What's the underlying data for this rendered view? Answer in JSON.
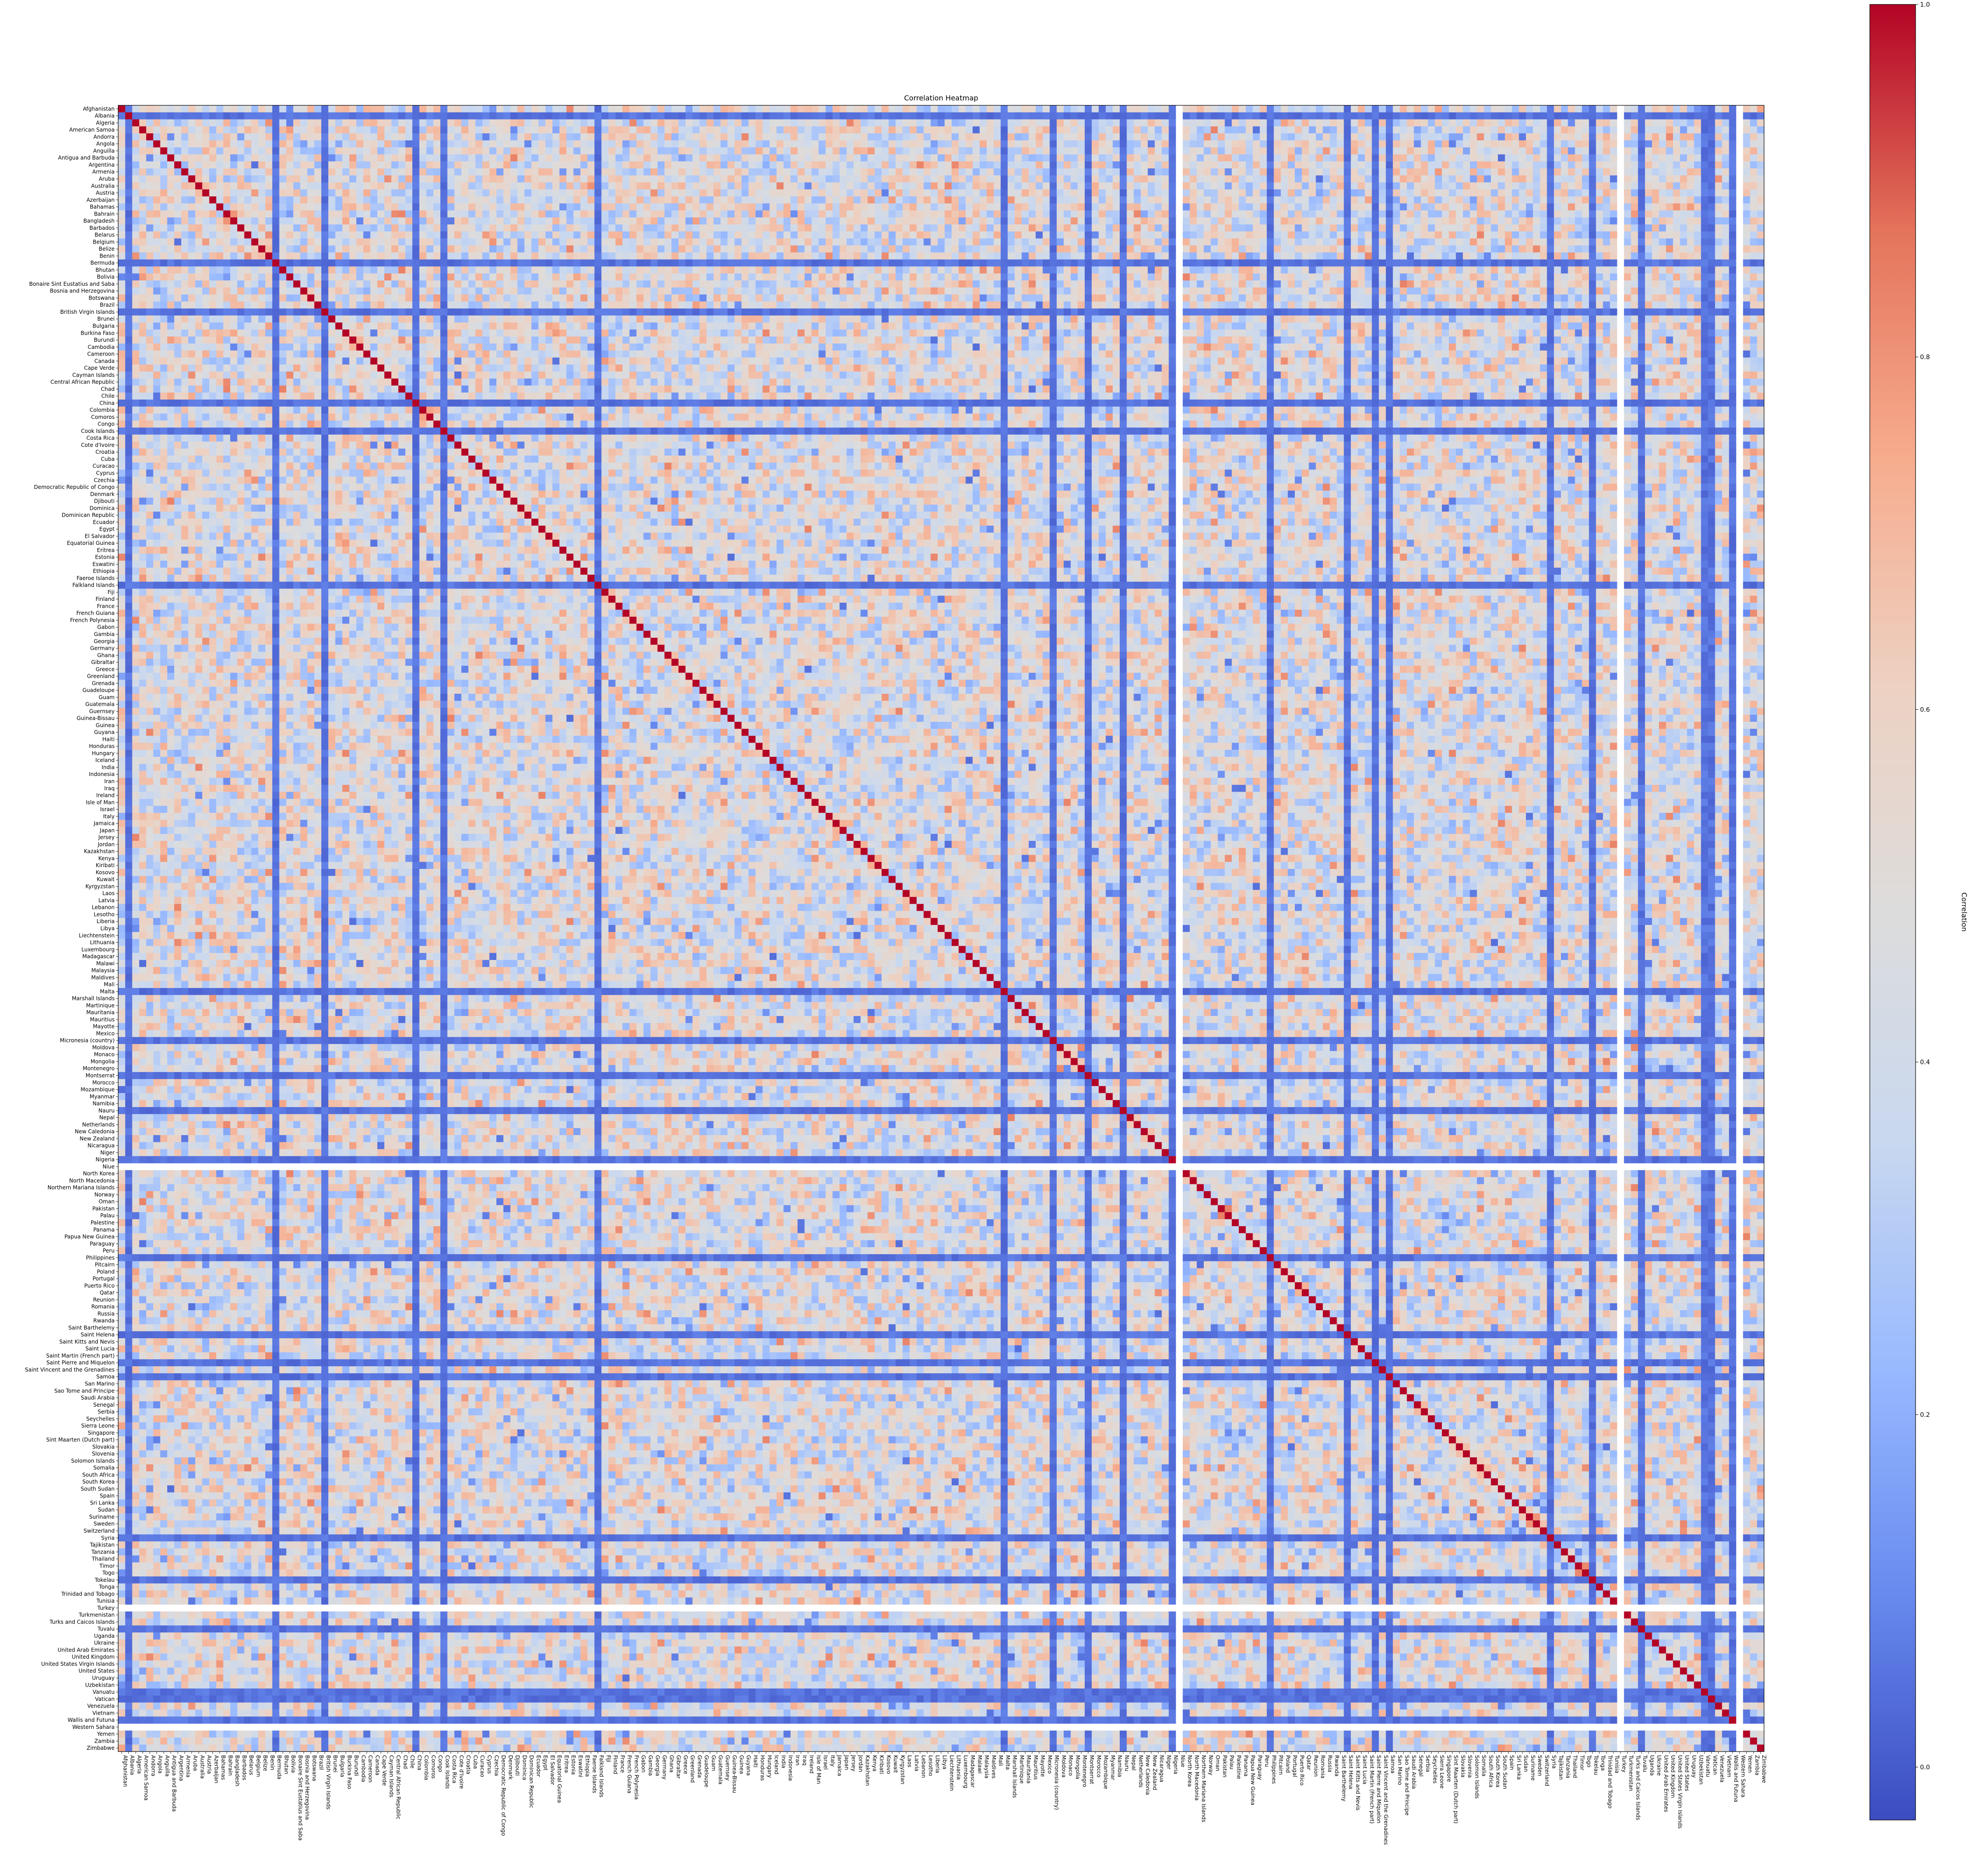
{
  "chart_data": {
    "type": "heatmap",
    "title": "Correlation Heatmap",
    "colorbar": {
      "label": "Correlation",
      "min": -0.03,
      "max": 1.0,
      "ticks": [
        0.0,
        0.2,
        0.4,
        0.6,
        0.8,
        1.0
      ],
      "colormap": "coolwarm",
      "stops": [
        "#3b4cc0",
        "#688aef",
        "#99baff",
        "#c9d8ef",
        "#dddcdc",
        "#edd1c2",
        "#f7ac8e",
        "#e4745b",
        "#b40426"
      ]
    },
    "labels": [
      "Afghanistan",
      "Albania",
      "Algeria",
      "American Samoa",
      "Andorra",
      "Angola",
      "Anguilla",
      "Antigua and Barbuda",
      "Argentina",
      "Armenia",
      "Aruba",
      "Australia",
      "Austria",
      "Azerbaijan",
      "Bahamas",
      "Bahrain",
      "Bangladesh",
      "Barbados",
      "Belarus",
      "Belgium",
      "Belize",
      "Benin",
      "Bermuda",
      "Bhutan",
      "Bolivia",
      "Bonaire Sint Eustatius and Saba",
      "Bosnia and Herzegovina",
      "Botswana",
      "Brazil",
      "British Virgin Islands",
      "Brunei",
      "Bulgaria",
      "Burkina Faso",
      "Burundi",
      "Cambodia",
      "Cameroon",
      "Canada",
      "Cape Verde",
      "Cayman Islands",
      "Central African Republic",
      "Chad",
      "Chile",
      "China",
      "Colombia",
      "Comoros",
      "Congo",
      "Cook Islands",
      "Costa Rica",
      "Cote d'Ivoire",
      "Croatia",
      "Cuba",
      "Curacao",
      "Cyprus",
      "Czechia",
      "Democratic Republic of Congo",
      "Denmark",
      "Djibouti",
      "Dominica",
      "Dominican Republic",
      "Ecuador",
      "Egypt",
      "El Salvador",
      "Equatorial Guinea",
      "Eritrea",
      "Estonia",
      "Eswatini",
      "Ethiopia",
      "Faeroe Islands",
      "Falkland Islands",
      "Fiji",
      "Finland",
      "France",
      "French Guiana",
      "French Polynesia",
      "Gabon",
      "Gambia",
      "Georgia",
      "Germany",
      "Ghana",
      "Gibraltar",
      "Greece",
      "Greenland",
      "Grenada",
      "Guadeloupe",
      "Guam",
      "Guatemala",
      "Guernsey",
      "Guinea-Bissau",
      "Guinea",
      "Guyana",
      "Haiti",
      "Honduras",
      "Hungary",
      "Iceland",
      "India",
      "Indonesia",
      "Iran",
      "Iraq",
      "Ireland",
      "Isle of Man",
      "Israel",
      "Italy",
      "Jamaica",
      "Japan",
      "Jersey",
      "Jordan",
      "Kazakhstan",
      "Kenya",
      "Kiribati",
      "Kosovo",
      "Kuwait",
      "Kyrgyzstan",
      "Laos",
      "Latvia",
      "Lebanon",
      "Lesotho",
      "Liberia",
      "Libya",
      "Liechtenstein",
      "Lithuania",
      "Luxembourg",
      "Madagascar",
      "Malawi",
      "Malaysia",
      "Maldives",
      "Mali",
      "Malta",
      "Marshall Islands",
      "Martinique",
      "Mauritania",
      "Mauritius",
      "Mayotte",
      "Mexico",
      "Micronesia (country)",
      "Moldova",
      "Monaco",
      "Mongolia",
      "Montenegro",
      "Montserrat",
      "Morocco",
      "Mozambique",
      "Myanmar",
      "Namibia",
      "Nauru",
      "Nepal",
      "Netherlands",
      "New Caledonia",
      "New Zealand",
      "Nicaragua",
      "Niger",
      "Nigeria",
      "Niue",
      "North Korea",
      "North Macedonia",
      "Northern Mariana Islands",
      "Norway",
      "Oman",
      "Pakistan",
      "Palau",
      "Palestine",
      "Panama",
      "Papua New Guinea",
      "Paraguay",
      "Peru",
      "Philippines",
      "Pitcairn",
      "Poland",
      "Portugal",
      "Puerto Rico",
      "Qatar",
      "Reunion",
      "Romania",
      "Russia",
      "Rwanda",
      "Saint Barthelemy",
      "Saint Helena",
      "Saint Kitts and Nevis",
      "Saint Lucia",
      "Saint Martin (French part)",
      "Saint Pierre and Miquelon",
      "Saint Vincent and the Grenadines",
      "Samoa",
      "San Marino",
      "Sao Tome and Principe",
      "Saudi Arabia",
      "Senegal",
      "Serbia",
      "Seychelles",
      "Sierra Leone",
      "Singapore",
      "Sint Maarten (Dutch part)",
      "Slovakia",
      "Slovenia",
      "Solomon Islands",
      "Somalia",
      "South Africa",
      "South Korea",
      "South Sudan",
      "Spain",
      "Sri Lanka",
      "Sudan",
      "Suriname",
      "Sweden",
      "Switzerland",
      "Syria",
      "Tajikistan",
      "Tanzania",
      "Thailand",
      "Timor",
      "Togo",
      "Tokelau",
      "Tonga",
      "Trinidad and Tobago",
      "Tunisia",
      "Turkey",
      "Turkmenistan",
      "Turks and Caicos Islands",
      "Tuvalu",
      "Uganda",
      "Ukraine",
      "United Arab Emirates",
      "United Kingdom",
      "United States Virgin Islands",
      "United States",
      "Uruguay",
      "Uzbekistan",
      "Vanuatu",
      "Vatican",
      "Venezuela",
      "Vietnam",
      "Wallis and Futuna",
      "Western Sahara",
      "Yemen",
      "Zambia",
      "Zimbabwe"
    ],
    "values_note": "Symmetric correlation matrix between the listed countries. Diagonal = 1.0. Off-diagonal values range roughly -0.03 to 0.85 (mostly 0.25-0.75). Rows/columns for sparse series are near 0 (blue bands); Niue, Turkey and Western Sahara are empty (no data).",
    "diagonal": 1.0,
    "typical_range": [
      0.25,
      0.75
    ],
    "low_correlation": {
      "labels": [
        "Albania",
        "Bermuda",
        "British Virgin Islands",
        "China",
        "Cook Islands",
        "Falkland Islands",
        "Malta",
        "Micronesia (country)",
        "Montserrat",
        "Nauru",
        "Nigeria",
        "Philippines",
        "Saint Helena",
        "Saint Pierre and Miquelon",
        "Samoa",
        "Syria",
        "Tokelau",
        "Tuvalu",
        "Vanuatu",
        "Vatican",
        "Wallis and Futuna"
      ],
      "value": 0.02
    },
    "missing": [
      "Niue",
      "Turkey",
      "Western Sahara"
    ]
  }
}
